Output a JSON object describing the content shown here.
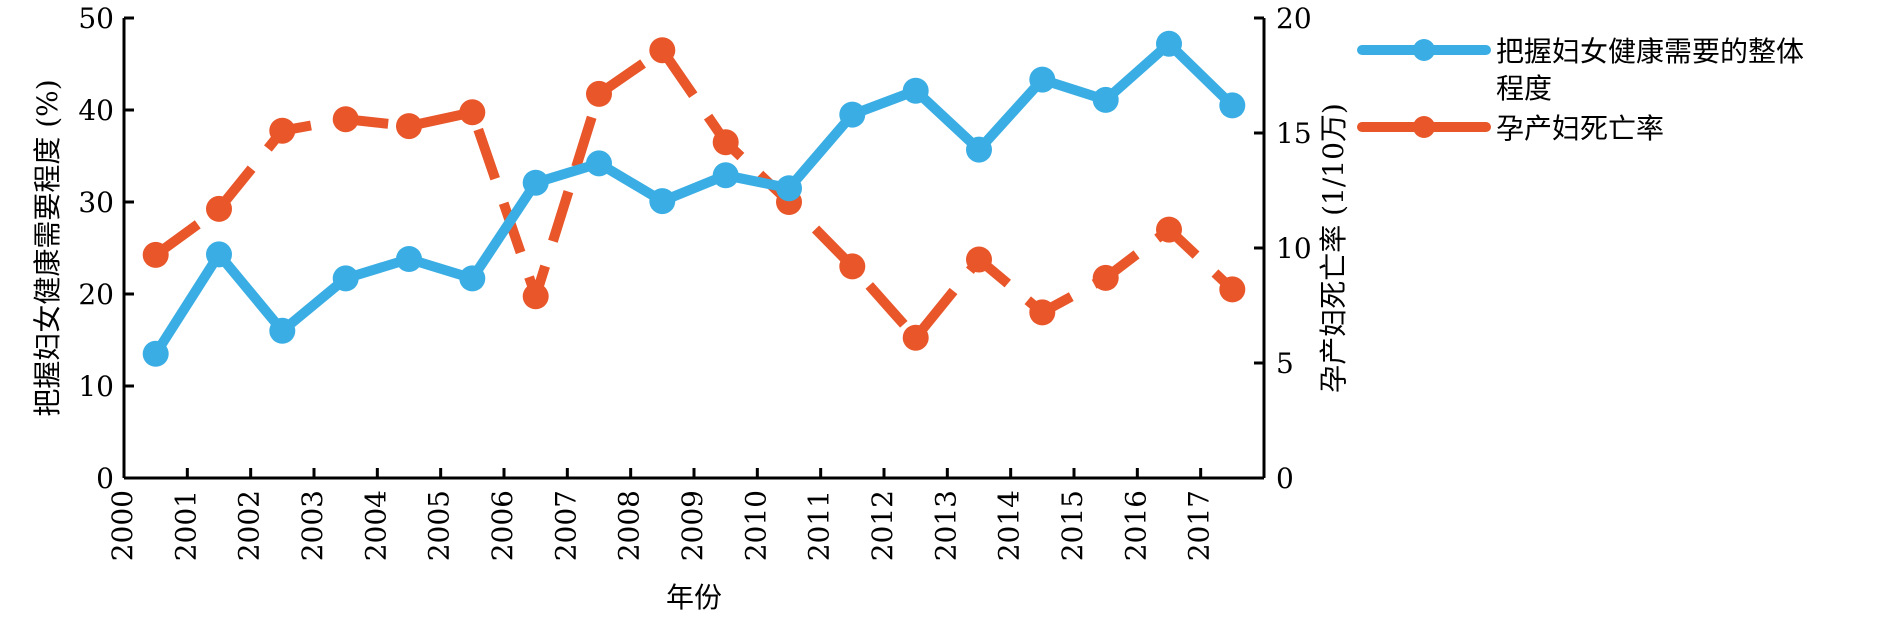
{
  "chart_data": {
    "type": "line",
    "xlabel": "年份",
    "ylabel_left": "把握妇女健康需要程度 (%)",
    "ylabel_right": "孕产妇死亡率 (1/10万)",
    "x": [
      "2000",
      "2001",
      "2002",
      "2003",
      "2004",
      "2005",
      "2006",
      "2007",
      "2008",
      "2009",
      "2010",
      "2011",
      "2012",
      "2013",
      "2014",
      "2015",
      "2016",
      "2017"
    ],
    "ylim_left": [
      0,
      50
    ],
    "ylim_right": [
      0,
      20
    ],
    "yticks_left": [
      "0",
      "10",
      "20",
      "30",
      "40",
      "50"
    ],
    "yticks_right": [
      "0",
      "5",
      "10",
      "15",
      "20"
    ],
    "grid": false,
    "legend_position": "top-right",
    "series": [
      {
        "name": "把握妇女健康需要的整体程度",
        "name_lines": [
          "把握妇女健康需要的整体",
          "程度"
        ],
        "axis": "left",
        "color": "#3aaee4",
        "style": "solid",
        "values": [
          13.5,
          24.3,
          16.0,
          21.7,
          23.8,
          21.7,
          32.1,
          34.2,
          30.1,
          32.9,
          31.5,
          39.5,
          42.1,
          35.7,
          43.3,
          41.1,
          47.2,
          40.5
        ]
      },
      {
        "name": "孕产妇死亡率",
        "axis": "right",
        "color": "#e8562a",
        "style": "dashed",
        "values": [
          9.7,
          11.7,
          15.1,
          15.6,
          15.3,
          15.9,
          7.9,
          16.7,
          18.6,
          14.6,
          12.0,
          9.2,
          6.1,
          9.5,
          7.2,
          8.7,
          10.8,
          8.2
        ]
      }
    ]
  }
}
